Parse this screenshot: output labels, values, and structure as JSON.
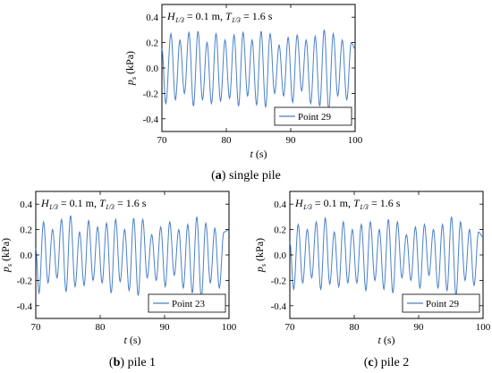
{
  "chart_data": [
    {
      "type": "line",
      "caption_letter": "a",
      "caption_text": "single pile",
      "xlabel_var": "t",
      "xlabel_unit": "(s)",
      "ylabel_var": "p",
      "ylabel_sub": "s",
      "ylabel_unit": "(kPa)",
      "xlim": [
        70,
        100
      ],
      "ylim": [
        -0.5,
        0.5
      ],
      "x_ticks": [
        70,
        80,
        90,
        100
      ],
      "y_ticks": [
        -0.4,
        -0.2,
        0.0,
        0.2,
        0.4
      ],
      "x_tick_labels": [
        "70",
        "80",
        "90",
        "100"
      ],
      "y_tick_labels": [
        "-0.4",
        "-0.2",
        "0.0",
        "0.2",
        "0.4"
      ],
      "annotation": {
        "H": "H",
        "H_sub": "1/3",
        "H_val": " = 0.1 m, ",
        "T": "T",
        "T_sub": "1/3",
        "T_val": " = 1.6 s"
      },
      "legend": "top-right box at bottom-right",
      "series": [
        {
          "name": "Point 29",
          "color": "#4a80c8",
          "peaks": [
            [
              70.0,
              0.15
            ],
            [
              70.6,
              -0.28
            ],
            [
              71.4,
              0.27
            ],
            [
              72.1,
              -0.25
            ],
            [
              72.8,
              0.22
            ],
            [
              73.5,
              -0.2
            ],
            [
              74.2,
              0.28
            ],
            [
              74.9,
              -0.3
            ],
            [
              75.6,
              0.29
            ],
            [
              76.3,
              -0.25
            ],
            [
              77.0,
              0.2
            ],
            [
              77.7,
              -0.28
            ],
            [
              78.4,
              0.27
            ],
            [
              79.1,
              -0.26
            ],
            [
              79.8,
              0.22
            ],
            [
              80.5,
              -0.24
            ],
            [
              81.2,
              0.26
            ],
            [
              81.9,
              -0.3
            ],
            [
              82.6,
              0.28
            ],
            [
              83.3,
              -0.22
            ],
            [
              84.0,
              0.22
            ],
            [
              84.7,
              -0.29
            ],
            [
              85.4,
              0.29
            ],
            [
              86.1,
              -0.31
            ],
            [
              86.8,
              0.27
            ],
            [
              87.5,
              -0.2
            ],
            [
              88.2,
              0.18
            ],
            [
              88.9,
              -0.22
            ],
            [
              89.6,
              0.24
            ],
            [
              90.3,
              -0.27
            ],
            [
              91.0,
              0.26
            ],
            [
              91.7,
              -0.18
            ],
            [
              92.4,
              0.22
            ],
            [
              93.1,
              -0.28
            ],
            [
              93.8,
              0.25
            ],
            [
              94.5,
              -0.3
            ],
            [
              95.2,
              0.3
            ],
            [
              95.9,
              -0.33
            ],
            [
              96.6,
              0.27
            ],
            [
              97.3,
              -0.22
            ],
            [
              98.0,
              0.22
            ],
            [
              98.7,
              -0.25
            ],
            [
              99.4,
              0.2
            ],
            [
              100.0,
              0.15
            ]
          ]
        }
      ]
    },
    {
      "type": "line",
      "caption_letter": "b",
      "caption_text": "pile 1",
      "xlabel_var": "t",
      "xlabel_unit": "(s)",
      "ylabel_var": "p",
      "ylabel_sub": "s",
      "ylabel_unit": "(kPa)",
      "xlim": [
        70,
        100
      ],
      "ylim": [
        -0.5,
        0.5
      ],
      "x_ticks": [
        70,
        80,
        90,
        100
      ],
      "y_ticks": [
        -0.4,
        -0.2,
        0.0,
        0.2,
        0.4
      ],
      "x_tick_labels": [
        "70",
        "80",
        "90",
        "100"
      ],
      "y_tick_labels": [
        "-0.4",
        "-0.2",
        "0.0",
        "0.2",
        "0.4"
      ],
      "annotation": {
        "H": "H",
        "H_sub": "1/3",
        "H_val": " = 0.1 m, ",
        "T": "T",
        "T_sub": "1/3",
        "T_val": " = 1.6 s"
      },
      "legend": "bottom-right",
      "series": [
        {
          "name": "Point 23",
          "color": "#4a80c8",
          "peaks": [
            [
              70.0,
              0.05
            ],
            [
              70.5,
              -0.3
            ],
            [
              71.2,
              0.26
            ],
            [
              71.9,
              -0.22
            ],
            [
              72.6,
              0.2
            ],
            [
              73.3,
              -0.18
            ],
            [
              74.0,
              0.28
            ],
            [
              74.7,
              -0.29
            ],
            [
              75.4,
              0.31
            ],
            [
              76.1,
              -0.25
            ],
            [
              76.8,
              0.18
            ],
            [
              77.5,
              -0.24
            ],
            [
              78.2,
              0.27
            ],
            [
              78.9,
              -0.2
            ],
            [
              79.6,
              0.22
            ],
            [
              80.3,
              -0.22
            ],
            [
              81.0,
              0.25
            ],
            [
              81.7,
              -0.3
            ],
            [
              82.4,
              0.28
            ],
            [
              83.1,
              -0.21
            ],
            [
              83.8,
              0.2
            ],
            [
              84.5,
              -0.28
            ],
            [
              85.2,
              0.29
            ],
            [
              85.9,
              -0.32
            ],
            [
              86.6,
              0.28
            ],
            [
              87.3,
              -0.18
            ],
            [
              88.0,
              0.16
            ],
            [
              88.7,
              -0.2
            ],
            [
              89.4,
              0.22
            ],
            [
              90.1,
              -0.25
            ],
            [
              90.8,
              0.26
            ],
            [
              91.5,
              -0.16
            ],
            [
              92.2,
              0.2
            ],
            [
              92.9,
              -0.26
            ],
            [
              93.6,
              0.24
            ],
            [
              94.3,
              -0.3
            ],
            [
              95.0,
              0.3
            ],
            [
              95.7,
              -0.34
            ],
            [
              96.4,
              0.25
            ],
            [
              97.1,
              -0.22
            ],
            [
              97.8,
              0.21
            ],
            [
              98.5,
              -0.26
            ],
            [
              99.2,
              0.18
            ],
            [
              100.0,
              0.2
            ]
          ]
        }
      ]
    },
    {
      "type": "line",
      "caption_letter": "c",
      "caption_text": "pile 2",
      "xlabel_var": "t",
      "xlabel_unit": "(s)",
      "ylabel_var": "p",
      "ylabel_sub": "s",
      "ylabel_unit": "(kPa)",
      "xlim": [
        70,
        100
      ],
      "ylim": [
        -0.5,
        0.5
      ],
      "x_ticks": [
        70,
        80,
        90,
        100
      ],
      "y_ticks": [
        -0.4,
        -0.2,
        0.0,
        0.2,
        0.4
      ],
      "x_tick_labels": [
        "70",
        "80",
        "90",
        "100"
      ],
      "y_tick_labels": [
        "-0.4",
        "-0.2",
        "0.0",
        "0.2",
        "0.4"
      ],
      "annotation": {
        "H": "H",
        "H_sub": "1/3",
        "H_val": " = 0.1 m, ",
        "T": "T",
        "T_sub": "1/3",
        "T_val": " = 1.6 s"
      },
      "legend": "bottom-right",
      "series": [
        {
          "name": "Point 29",
          "color": "#4a80c8",
          "peaks": [
            [
              70.0,
              0.1
            ],
            [
              70.6,
              -0.27
            ],
            [
              71.3,
              0.24
            ],
            [
              72.0,
              -0.22
            ],
            [
              72.7,
              0.2
            ],
            [
              73.4,
              -0.18
            ],
            [
              74.1,
              0.26
            ],
            [
              74.8,
              -0.27
            ],
            [
              75.5,
              0.29
            ],
            [
              76.2,
              -0.23
            ],
            [
              76.9,
              0.18
            ],
            [
              77.6,
              -0.25
            ],
            [
              78.3,
              0.26
            ],
            [
              79.0,
              -0.22
            ],
            [
              79.7,
              0.2
            ],
            [
              80.4,
              -0.22
            ],
            [
              81.1,
              0.24
            ],
            [
              81.8,
              -0.28
            ],
            [
              82.5,
              0.26
            ],
            [
              83.2,
              -0.2
            ],
            [
              83.9,
              0.2
            ],
            [
              84.6,
              -0.27
            ],
            [
              85.3,
              0.28
            ],
            [
              86.0,
              -0.3
            ],
            [
              86.7,
              0.26
            ],
            [
              87.4,
              -0.18
            ],
            [
              88.1,
              0.16
            ],
            [
              88.8,
              -0.2
            ],
            [
              89.5,
              0.22
            ],
            [
              90.2,
              -0.26
            ],
            [
              90.9,
              0.24
            ],
            [
              91.6,
              -0.16
            ],
            [
              92.3,
              0.2
            ],
            [
              93.0,
              -0.26
            ],
            [
              93.7,
              0.24
            ],
            [
              94.4,
              -0.28
            ],
            [
              95.1,
              0.3
            ],
            [
              95.8,
              -0.32
            ],
            [
              96.5,
              0.26
            ],
            [
              97.2,
              -0.2
            ],
            [
              97.9,
              0.2
            ],
            [
              98.6,
              -0.24
            ],
            [
              99.3,
              0.18
            ],
            [
              100.0,
              0.14
            ]
          ]
        }
      ]
    }
  ]
}
